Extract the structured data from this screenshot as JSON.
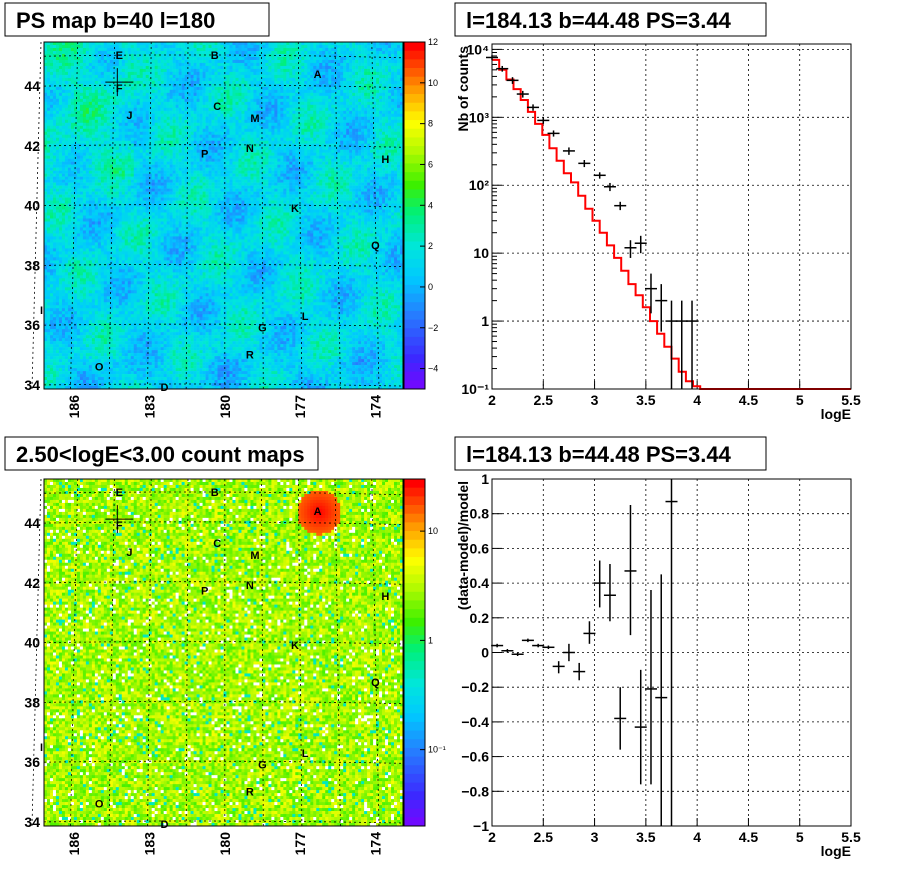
{
  "panels": {
    "map1": {
      "title": "PS map b=40 l=180",
      "palette_ticks": [
        "12",
        "10",
        "8",
        "6",
        "4",
        "2",
        "0",
        "−2",
        "−4"
      ],
      "palette_values": [
        12,
        10,
        8,
        6,
        4,
        2,
        0,
        -2,
        -4
      ],
      "palette_range": [
        -5,
        12
      ]
    },
    "map2": {
      "title": "2.50<logE<3.00 count maps",
      "palette_ticks": [
        "10",
        "1",
        "10⁻¹"
      ],
      "palette_values": [
        10,
        1,
        0.1
      ],
      "palette_range": [
        0.02,
        30
      ],
      "palette_log": true
    },
    "spectrum": {
      "title": "l=184.13 b=44.48 PS=3.44"
    },
    "residual": {
      "title": "l=184.13 b=44.48 PS=3.44"
    }
  },
  "map_axes": {
    "lat_ticks": [
      "44",
      "42",
      "40",
      "38",
      "36",
      "34"
    ],
    "lat_values": [
      44,
      42,
      40,
      38,
      36,
      34
    ],
    "lon_ticks": [
      "186",
      "183",
      "180",
      "177",
      "174"
    ],
    "lon_values": [
      186,
      183,
      180,
      177,
      174
    ],
    "lat_range": [
      33.9,
      45.5
    ],
    "lon_range": [
      187.2,
      172.9
    ]
  },
  "sources": [
    {
      "name": "E",
      "l": 184.2,
      "b": 45.0
    },
    {
      "name": "F",
      "l": 184.2,
      "b": 43.9
    },
    {
      "name": "B",
      "l": 180.4,
      "b": 45.0
    },
    {
      "name": "A",
      "l": 176.3,
      "b": 44.4
    },
    {
      "name": "J",
      "l": 183.8,
      "b": 43.0
    },
    {
      "name": "C",
      "l": 180.3,
      "b": 43.3
    },
    {
      "name": "M",
      "l": 178.8,
      "b": 42.9
    },
    {
      "name": "N",
      "l": 179.0,
      "b": 41.9
    },
    {
      "name": "P",
      "l": 180.8,
      "b": 41.7
    },
    {
      "name": "H",
      "l": 173.6,
      "b": 41.6
    },
    {
      "name": "K",
      "l": 177.2,
      "b": 39.9
    },
    {
      "name": "Q",
      "l": 174.0,
      "b": 38.7
    },
    {
      "name": "I",
      "l": 187.3,
      "b": 36.5
    },
    {
      "name": "L",
      "l": 176.8,
      "b": 36.3
    },
    {
      "name": "G",
      "l": 178.5,
      "b": 35.9
    },
    {
      "name": "R",
      "l": 179.0,
      "b": 35.0
    },
    {
      "name": "O",
      "l": 185.0,
      "b": 34.6
    },
    {
      "name": "D",
      "l": 182.4,
      "b": 33.9
    }
  ],
  "chart_data": [
    {
      "type": "line",
      "title": "l=184.13 b=44.48 PS=3.44",
      "xlabel": "logE",
      "ylabel": "Nb of counts",
      "xlim": [
        2,
        5.5
      ],
      "ylim": [
        0.1,
        12000
      ],
      "ylog": true,
      "grid": true,
      "x_ticks": [
        "2",
        "2.5",
        "3",
        "3.5",
        "4",
        "4.5",
        "5",
        "5.5"
      ],
      "x_tick_values": [
        2,
        2.5,
        3,
        3.5,
        4,
        4.5,
        5,
        5.5
      ],
      "y_ticks": [
        "10⁻¹",
        "1",
        "10",
        "10²",
        "10³",
        "10⁴"
      ],
      "y_tick_values": [
        0.1,
        1,
        10,
        100,
        1000,
        10000
      ],
      "series": [
        {
          "type": "step",
          "color": "#ff0000",
          "x_edges": [
            2,
            2.07,
            2.14,
            2.21,
            2.28,
            2.35,
            2.42,
            2.49,
            2.56,
            2.63,
            2.7,
            2.77,
            2.84,
            2.91,
            2.98,
            3.05,
            3.12,
            3.19,
            3.26,
            3.33,
            3.4,
            3.47,
            3.54,
            3.61,
            3.68,
            3.75,
            3.82,
            3.89,
            3.96,
            4.03,
            5.5
          ],
          "values": [
            7000,
            5000,
            3600,
            2600,
            1800,
            1200,
            800,
            550,
            350,
            230,
            150,
            110,
            70,
            45,
            30,
            20,
            13,
            8.5,
            5.5,
            3.5,
            2.4,
            1.6,
            1.0,
            0.65,
            0.42,
            0.28,
            0.18,
            0.13,
            0.11,
            0.1
          ]
        },
        {
          "type": "errorbars",
          "color": "#000000",
          "points": [
            {
              "x": 2.0,
              "y": 7600,
              "lo": 7000,
              "hi": 8200
            },
            {
              "x": 2.1,
              "y": 5200,
              "lo": 4700,
              "hi": 5700
            },
            {
              "x": 2.2,
              "y": 3500,
              "lo": 3100,
              "hi": 3900
            },
            {
              "x": 2.3,
              "y": 2200,
              "lo": 1950,
              "hi": 2450
            },
            {
              "x": 2.4,
              "y": 1400,
              "lo": 1250,
              "hi": 1550
            },
            {
              "x": 2.5,
              "y": 900,
              "lo": 800,
              "hi": 1000
            },
            {
              "x": 2.6,
              "y": 580,
              "lo": 520,
              "hi": 640
            },
            {
              "x": 2.75,
              "y": 320,
              "lo": 280,
              "hi": 360
            },
            {
              "x": 2.9,
              "y": 210,
              "lo": 185,
              "hi": 235
            },
            {
              "x": 3.05,
              "y": 140,
              "lo": 125,
              "hi": 155
            },
            {
              "x": 3.15,
              "y": 95,
              "lo": 82,
              "hi": 108
            },
            {
              "x": 3.25,
              "y": 50,
              "lo": 43,
              "hi": 57
            },
            {
              "x": 3.35,
              "y": 12,
              "lo": 8.5,
              "hi": 15.5
            },
            {
              "x": 3.45,
              "y": 14,
              "lo": 10,
              "hi": 18
            },
            {
              "x": 3.55,
              "y": 3,
              "lo": 1.3,
              "hi": 5
            },
            {
              "x": 3.65,
              "y": 2,
              "lo": 0.7,
              "hi": 3.5
            },
            {
              "x": 3.75,
              "y": 1,
              "lo": 0.1,
              "hi": 2
            },
            {
              "x": 3.85,
              "y": 1,
              "lo": 0.1,
              "hi": 2
            },
            {
              "x": 3.95,
              "y": 1,
              "lo": 0.1,
              "hi": 2
            }
          ]
        }
      ]
    },
    {
      "type": "scatter",
      "title": "l=184.13 b=44.48 PS=3.44",
      "xlabel": "logE",
      "ylabel": "(data-model)/model",
      "xlim": [
        2,
        5.5
      ],
      "ylim": [
        -1,
        1
      ],
      "grid": true,
      "x_ticks": [
        "2",
        "2.5",
        "3",
        "3.5",
        "4",
        "4.5",
        "5",
        "5.5"
      ],
      "x_tick_values": [
        2,
        2.5,
        3,
        3.5,
        4,
        4.5,
        5,
        5.5
      ],
      "y_ticks": [
        "−1",
        "−0.8",
        "−0.6",
        "−0.4",
        "−0.2",
        "0",
        "0.2",
        "0.4",
        "0.6",
        "0.8",
        "1"
      ],
      "y_tick_values": [
        -1,
        -0.8,
        -0.6,
        -0.4,
        -0.2,
        0,
        0.2,
        0.4,
        0.6,
        0.8,
        1
      ],
      "series": [
        {
          "type": "errorbars",
          "color": "#000000",
          "points": [
            {
              "x": 2.05,
              "y": 0.04,
              "lo": 0.03,
              "hi": 0.05
            },
            {
              "x": 2.15,
              "y": 0.01,
              "lo": 0.0,
              "hi": 0.02
            },
            {
              "x": 2.25,
              "y": -0.01,
              "lo": -0.02,
              "hi": 0.0
            },
            {
              "x": 2.35,
              "y": 0.07,
              "lo": 0.06,
              "hi": 0.08
            },
            {
              "x": 2.45,
              "y": 0.04,
              "lo": 0.03,
              "hi": 0.05
            },
            {
              "x": 2.55,
              "y": 0.03,
              "lo": 0.02,
              "hi": 0.04
            },
            {
              "x": 2.65,
              "y": -0.08,
              "lo": -0.12,
              "hi": -0.05
            },
            {
              "x": 2.75,
              "y": 0.0,
              "lo": -0.05,
              "hi": 0.05
            },
            {
              "x": 2.85,
              "y": -0.11,
              "lo": -0.16,
              "hi": -0.06
            },
            {
              "x": 2.95,
              "y": 0.11,
              "lo": 0.05,
              "hi": 0.18
            },
            {
              "x": 3.05,
              "y": 0.4,
              "lo": 0.26,
              "hi": 0.53
            },
            {
              "x": 3.15,
              "y": 0.33,
              "lo": 0.18,
              "hi": 0.51
            },
            {
              "x": 3.25,
              "y": -0.38,
              "lo": -0.56,
              "hi": -0.2
            },
            {
              "x": 3.35,
              "y": 0.47,
              "lo": 0.1,
              "hi": 0.85
            },
            {
              "x": 3.45,
              "y": -0.43,
              "lo": -0.76,
              "hi": -0.1
            },
            {
              "x": 3.55,
              "y": -0.21,
              "lo": -0.76,
              "hi": 0.36
            },
            {
              "x": 3.65,
              "y": -0.26,
              "lo": -1.0,
              "hi": 0.45
            },
            {
              "x": 3.75,
              "y": 0.87,
              "lo": -1.0,
              "hi": 1.0
            }
          ]
        }
      ]
    }
  ]
}
